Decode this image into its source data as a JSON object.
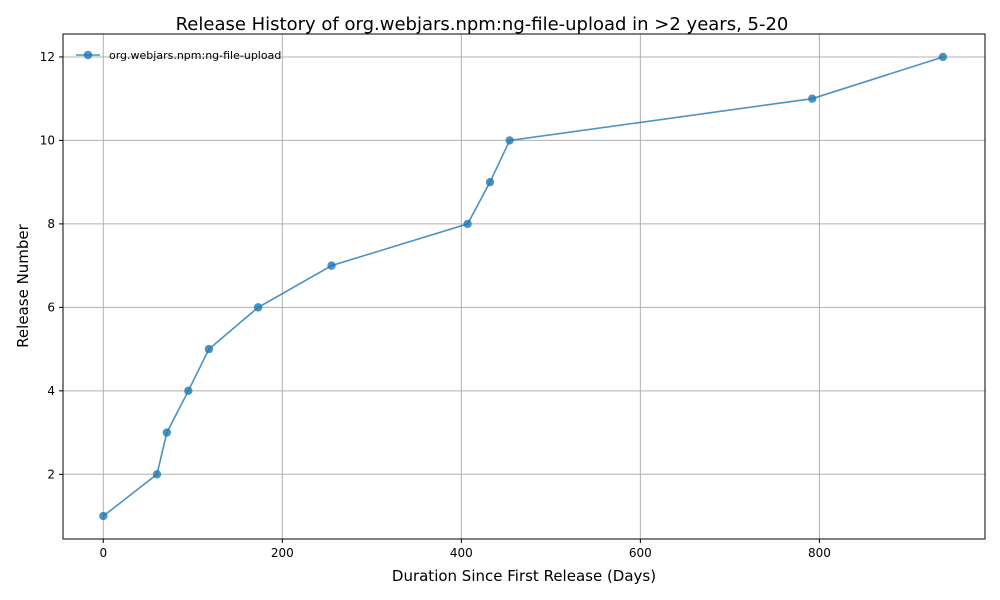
{
  "chart_data": {
    "type": "line",
    "title": "Release History of org.webjars.npm:ng-file-upload in >2 years, 5-20",
    "xlabel": "Duration Since First Release (Days)",
    "ylabel": "Release Number",
    "xlim": [
      -45,
      985
    ],
    "ylim": [
      0.45,
      12.55
    ],
    "xticks": [
      0,
      200,
      400,
      600,
      800
    ],
    "yticks": [
      2,
      4,
      6,
      8,
      10,
      12
    ],
    "grid": true,
    "legend_position": "top-left",
    "series": [
      {
        "name": "org.webjars.npm:ng-file-upload",
        "color": "#1f77b4",
        "marker": "circle",
        "x": [
          0,
          60,
          71,
          95,
          118,
          173,
          255,
          407,
          432,
          454,
          792,
          938
        ],
        "y": [
          1,
          2,
          3,
          4,
          5,
          6,
          7,
          8,
          9,
          10,
          11,
          12
        ]
      }
    ]
  }
}
